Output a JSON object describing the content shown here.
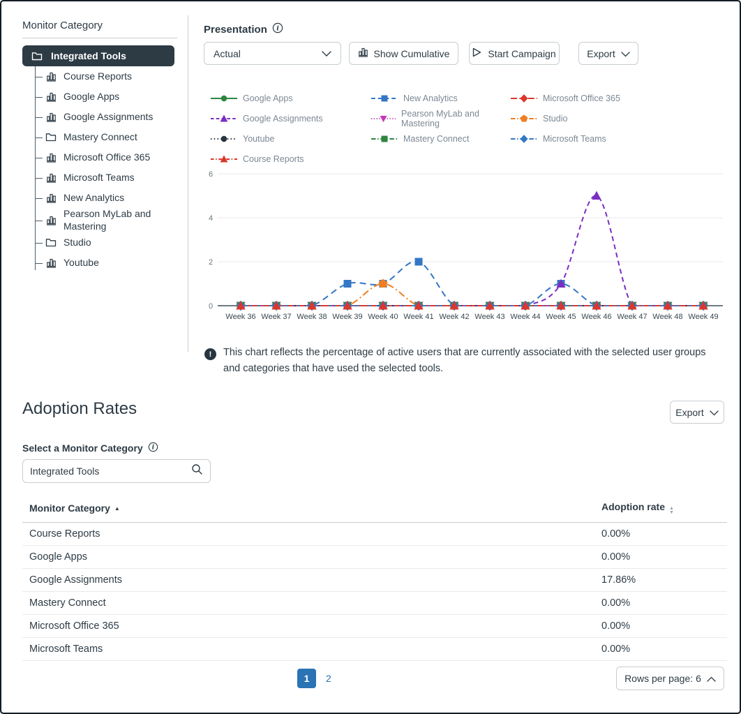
{
  "colors": {
    "ink": "#2D3B45",
    "border": "#C7CDD1",
    "accent_blue": "#2A73B5",
    "legend_text": "#7C8894",
    "axis_line": "#3F4F5A",
    "grid": "#E8EAEC"
  },
  "sidebar": {
    "title": "Monitor Category",
    "root": {
      "label": "Integrated Tools",
      "icon": "folder"
    },
    "items": [
      {
        "label": "Course Reports",
        "icon": "chart"
      },
      {
        "label": "Google Apps",
        "icon": "chart"
      },
      {
        "label": "Google Assignments",
        "icon": "chart"
      },
      {
        "label": "Mastery Connect",
        "icon": "folder"
      },
      {
        "label": "Microsoft Office 365",
        "icon": "chart"
      },
      {
        "label": "Microsoft Teams",
        "icon": "chart"
      },
      {
        "label": "New Analytics",
        "icon": "chart"
      },
      {
        "label": "Pearson MyLab and Mastering",
        "icon": "chart"
      },
      {
        "label": "Studio",
        "icon": "folder"
      },
      {
        "label": "Youtube",
        "icon": "chart"
      }
    ]
  },
  "presentation": {
    "label": "Presentation",
    "select_value": "Actual",
    "show_cumulative_label": "Show Cumulative",
    "start_campaign_label": "Start Campaign",
    "export_label": "Export"
  },
  "chart_note": "This chart reflects the percentage of active users that are currently associated with the selected user groups and categories that have used the selected tools.",
  "chart_data": {
    "type": "line",
    "x": [
      "Week 36",
      "Week 37",
      "Week 38",
      "Week 39",
      "Week 40",
      "Week 41",
      "Week 42",
      "Week 43",
      "Week 44",
      "Week 45",
      "Week 46",
      "Week 47",
      "Week 48",
      "Week 49"
    ],
    "ylim": [
      0,
      6
    ],
    "yticks": [
      0,
      2,
      4,
      6
    ],
    "grid": "horizontal",
    "legend_position": "top",
    "series": [
      {
        "name": "Google Apps",
        "color": "#2E8540",
        "marker": "circle",
        "dash": "",
        "values": [
          0,
          0,
          0,
          0,
          0,
          0,
          0,
          0,
          0,
          0,
          0,
          0,
          0,
          0
        ]
      },
      {
        "name": "New Analytics",
        "color": "#3377C6",
        "marker": "square",
        "dash": "9 6",
        "values": [
          0,
          0,
          0,
          1,
          1,
          2,
          0,
          0,
          0,
          1,
          0,
          0,
          0,
          0
        ]
      },
      {
        "name": "Microsoft Office 365",
        "color": "#DA372D",
        "marker": "diamond",
        "dash": "14 5",
        "values": [
          0,
          0,
          0,
          0,
          0,
          0,
          0,
          0,
          0,
          0,
          0,
          0,
          0,
          0
        ]
      },
      {
        "name": "Google Assignments",
        "color": "#7B2EC1",
        "marker": "triangle-up",
        "dash": "7 5",
        "values": [
          0,
          0,
          0,
          0,
          0,
          0,
          0,
          0,
          0,
          1,
          5,
          0,
          0,
          0
        ]
      },
      {
        "name": "Pearson MyLab and Mastering",
        "color": "#C437B5",
        "marker": "triangle-down",
        "dash": "2 4",
        "values": [
          0,
          0,
          0,
          0,
          0,
          0,
          0,
          0,
          0,
          0,
          0,
          0,
          0,
          0
        ]
      },
      {
        "name": "Studio",
        "color": "#EE7E23",
        "marker": "pentagon",
        "dash": "10 4 2 4",
        "values": [
          0,
          0,
          0,
          0,
          1,
          0,
          0,
          0,
          0,
          0,
          0,
          0,
          0,
          0
        ]
      },
      {
        "name": "Youtube",
        "color": "#273540",
        "marker": "circle",
        "dash": "2 5",
        "values": [
          0,
          0,
          0,
          0,
          0,
          0,
          0,
          0,
          0,
          0,
          0,
          0,
          0,
          0
        ]
      },
      {
        "name": "Mastery Connect",
        "color": "#2E8540",
        "marker": "square",
        "dash": "10 4 2 4",
        "values": [
          0,
          0,
          0,
          0,
          0,
          0,
          0,
          0,
          0,
          0,
          0,
          0,
          0,
          0
        ]
      },
      {
        "name": "Microsoft Teams",
        "color": "#3377C6",
        "marker": "diamond",
        "dash": "10 4 2 4",
        "values": [
          0,
          0,
          0,
          0,
          0,
          0,
          0,
          0,
          0,
          0,
          0,
          0,
          0,
          0
        ]
      },
      {
        "name": "Course Reports",
        "color": "#DA372D",
        "marker": "triangle-up",
        "dash": "7 4 2 4",
        "values": [
          0,
          0,
          0,
          0,
          0,
          0,
          0,
          0,
          0,
          0,
          0,
          0,
          0,
          0
        ]
      }
    ]
  },
  "adoption": {
    "title": "Adoption Rates",
    "export_label": "Export",
    "select_label": "Select a Monitor Category",
    "search_value": "Integrated Tools",
    "table": {
      "columns": [
        "Monitor Category",
        "Adoption rate"
      ],
      "rows": [
        {
          "category": "Course Reports",
          "rate": "0.00%"
        },
        {
          "category": "Google Apps",
          "rate": "0.00%"
        },
        {
          "category": "Google Assignments",
          "rate": "17.86%"
        },
        {
          "category": "Mastery Connect",
          "rate": "0.00%"
        },
        {
          "category": "Microsoft Office 365",
          "rate": "0.00%"
        },
        {
          "category": "Microsoft Teams",
          "rate": "0.00%"
        }
      ]
    },
    "pagination": {
      "pages": [
        "1",
        "2"
      ],
      "active_page": "1",
      "rows_per_page_label": "Rows per page:",
      "rows_per_page_value": "6"
    }
  }
}
